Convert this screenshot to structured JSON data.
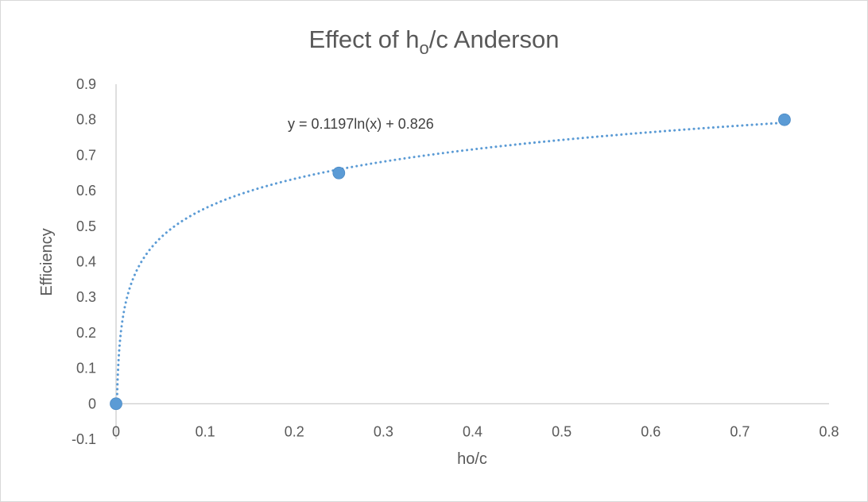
{
  "chart_data": {
    "type": "scatter",
    "title_main": "Effect of h",
    "title_sub": "o",
    "title_rest": "/c Anderson",
    "xlabel": "ho/c",
    "ylabel": "Efficiency",
    "xlim": [
      0,
      0.8
    ],
    "ylim": [
      -0.1,
      0.9
    ],
    "x_ticks": [
      "0",
      "0.1",
      "0.2",
      "0.3",
      "0.4",
      "0.5",
      "0.6",
      "0.7",
      "0.8"
    ],
    "y_ticks": [
      "-0.1",
      "0",
      "0.1",
      "0.2",
      "0.3",
      "0.4",
      "0.5",
      "0.6",
      "0.7",
      "0.8",
      "0.9"
    ],
    "points": [
      {
        "x": 0,
        "y": 0
      },
      {
        "x": 0.25,
        "y": 0.65
      },
      {
        "x": 0.75,
        "y": 0.8
      }
    ],
    "trendline": {
      "type": "logarithmic",
      "a": 0.1197,
      "b": 0.826,
      "equation": "y = 0.1197ln(x) + 0.826"
    },
    "grid": false,
    "colors": {
      "series": "#5b9bd5",
      "axis": "#bfbfbf",
      "text": "#595959"
    }
  }
}
